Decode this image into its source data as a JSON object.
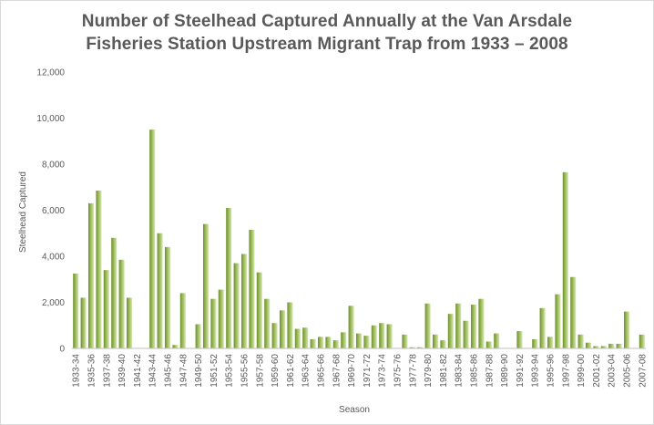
{
  "chart_data": {
    "type": "bar",
    "title_lines": [
      "Number of Steelhead Captured Annually at the Van Arsdale",
      "Fisheries Station Upstream Migrant Trap from 1933 – 2008"
    ],
    "xlabel": "Season",
    "ylabel": "Steelhead Captured",
    "ylim": [
      0,
      12000
    ],
    "yticks": [
      0,
      2000,
      4000,
      6000,
      8000,
      10000,
      12000
    ],
    "ytick_labels": [
      "0",
      "2,000",
      "4,000",
      "6,000",
      "8,000",
      "10,000",
      "12,000"
    ],
    "grid": false,
    "legend": "none",
    "bar_color": "#9bbb59",
    "categories": [
      "1933-34",
      "1934-35",
      "1935-36",
      "1936-37",
      "1937-38",
      "1938-39",
      "1939-40",
      "1940-41",
      "1941-42",
      "1942-43",
      "1943-44",
      "1944-45",
      "1945-46",
      "1946-47",
      "1947-48",
      "1948-49",
      "1949-50",
      "1950-51",
      "1951-52",
      "1952-53",
      "1953-54",
      "1954-55",
      "1955-56",
      "1956-57",
      "1957-58",
      "1958-59",
      "1959-60",
      "1960-61",
      "1961-62",
      "1962-63",
      "1963-64",
      "1964-65",
      "1965-66",
      "1966-67",
      "1967-68",
      "1968-69",
      "1969-70",
      "1970-71",
      "1971-72",
      "1972-73",
      "1973-74",
      "1974-75",
      "1975-76",
      "1976-77",
      "1977-78",
      "1978-79",
      "1979-80",
      "1980-81",
      "1981-82",
      "1982-83",
      "1983-84",
      "1984-85",
      "1985-86",
      "1986-87",
      "1987-88",
      "1988-89",
      "1989-90",
      "1990-91",
      "1991-92",
      "1992-93",
      "1993-94",
      "1994-95",
      "1995-96",
      "1996-97",
      "1997-98",
      "1998-99",
      "1999-00",
      "2000-01",
      "2001-02",
      "2002-03",
      "2003-04",
      "2004-05",
      "2005-06",
      "2006-07",
      "2007-08"
    ],
    "tick_labels_shown": [
      "1933-34",
      "1935-36",
      "1937-38",
      "1939-40",
      "1941-42",
      "1943-44",
      "1945-46",
      "1947-48",
      "1949-50",
      "1951-52",
      "1953-54",
      "1955-56",
      "1957-58",
      "1959-60",
      "1961-62",
      "1963-64",
      "1965-66",
      "1967-68",
      "1969-70",
      "1971-72",
      "1973-74",
      "1975-76",
      "1977-78",
      "1979-80",
      "1981-82",
      "1983-84",
      "1985-86",
      "1987-88",
      "1989-90",
      "1991-92",
      "1993-94",
      "1995-96",
      "1997-98",
      "1999-00",
      "2001-02",
      "2003-04",
      "2005-06",
      "2007-08"
    ],
    "values": [
      3250,
      2200,
      6300,
      6850,
      3400,
      4800,
      3850,
      2200,
      0,
      0,
      9500,
      5000,
      4400,
      150,
      2400,
      0,
      1050,
      5400,
      2150,
      2550,
      6100,
      3700,
      4100,
      5150,
      3300,
      2150,
      1100,
      1650,
      2000,
      850,
      900,
      400,
      500,
      500,
      350,
      700,
      1850,
      650,
      550,
      1000,
      1100,
      1050,
      0,
      600,
      50,
      50,
      1950,
      600,
      350,
      1500,
      1950,
      1200,
      1900,
      2150,
      300,
      650,
      0,
      0,
      750,
      0,
      400,
      1750,
      500,
      2350,
      7650,
      3100,
      600,
      250,
      100,
      100,
      200,
      200,
      1600,
      0,
      600
    ]
  }
}
